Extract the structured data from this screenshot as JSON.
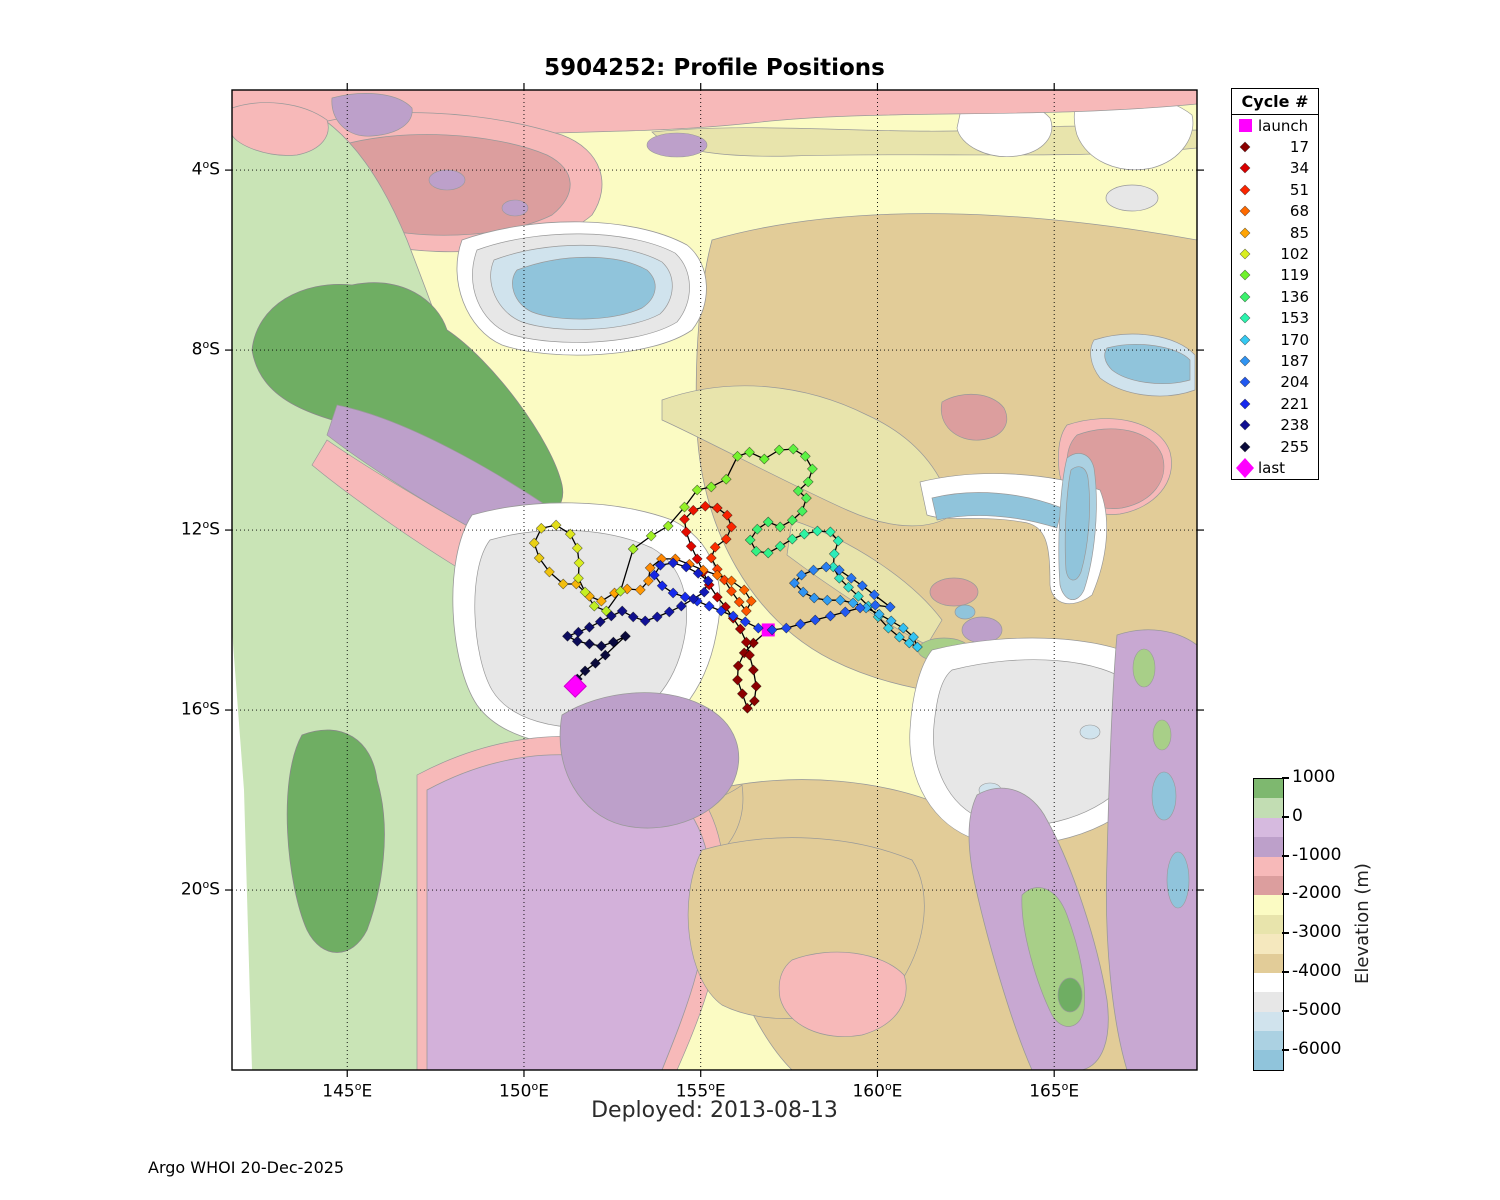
{
  "title": "5904252: Profile Positions",
  "deployed_label": "Deployed: 2013-08-13",
  "footer": "Argo WHOI 20-Dec-2025",
  "axes": {
    "lon_range": [
      141.74,
      169.04
    ],
    "lat_range": [
      -2.22,
      -24.0
    ],
    "lon_ticks": [
      145,
      150,
      155,
      160,
      165
    ],
    "lat_ticks": [
      4,
      8,
      12,
      16,
      20
    ],
    "lon_suffix": "E",
    "lat_suffix": "S"
  },
  "legend": {
    "title": "Cycle #",
    "items": [
      {
        "label": "launch",
        "type": "square",
        "color": "#ff00ff"
      },
      {
        "label": "17",
        "type": "diamond",
        "color": "#8b0000"
      },
      {
        "label": "34",
        "type": "diamond",
        "color": "#d90000"
      },
      {
        "label": "51",
        "type": "diamond",
        "color": "#fb2500"
      },
      {
        "label": "68",
        "type": "diamond",
        "color": "#ff6a00"
      },
      {
        "label": "85",
        "type": "diamond",
        "color": "#ffa405"
      },
      {
        "label": "102",
        "type": "diamond",
        "color": "#d9ee20"
      },
      {
        "label": "119",
        "type": "diamond",
        "color": "#70f22d"
      },
      {
        "label": "136",
        "type": "diamond",
        "color": "#3bf16c"
      },
      {
        "label": "153",
        "type": "diamond",
        "color": "#2bf3ad"
      },
      {
        "label": "170",
        "type": "diamond",
        "color": "#35c9f2"
      },
      {
        "label": "187",
        "type": "diamond",
        "color": "#3094f2"
      },
      {
        "label": "204",
        "type": "diamond",
        "color": "#2259f0"
      },
      {
        "label": "221",
        "type": "diamond",
        "color": "#1629ee"
      },
      {
        "label": "238",
        "type": "diamond",
        "color": "#111091"
      },
      {
        "label": "255",
        "type": "diamond",
        "color": "#0a0a3a"
      },
      {
        "label": "last",
        "type": "big-diamond",
        "color": "#ff00ff"
      }
    ]
  },
  "colorbar": {
    "label": "Elevation (m)",
    "tick_labels": [
      "1000",
      "0",
      "-1000",
      "-2000",
      "-3000",
      "-4000",
      "-5000",
      "-6000"
    ],
    "bands": [
      "#7eb86f",
      "#c2ddb3",
      "#d6badf",
      "#bda0ca",
      "#f7b9b9",
      "#dc9e9e",
      "#fbfbc3",
      "#e8e4ac",
      "#f5e8be",
      "#e2cc98",
      "#ffffff",
      "#e7e7e7",
      "#d0e3ed",
      "#abd1e2",
      "#90c4db"
    ]
  },
  "chart_data": {
    "type": "scatter",
    "title": "5904252: Profile Positions",
    "launch": [
      156.91,
      -14.22
    ],
    "last": [
      151.45,
      -15.47
    ],
    "points": [
      [
        156.49,
        -14.51,
        1
      ],
      [
        156.23,
        -14.73,
        3
      ],
      [
        156.06,
        -15.02,
        5
      ],
      [
        156.04,
        -15.33,
        7
      ],
      [
        156.18,
        -15.64,
        9
      ],
      [
        156.32,
        -15.96,
        11
      ],
      [
        156.52,
        -15.8,
        13
      ],
      [
        156.57,
        -15.47,
        15
      ],
      [
        156.49,
        -15.11,
        17
      ],
      [
        156.38,
        -14.78,
        19
      ],
      [
        156.29,
        -14.49,
        21
      ],
      [
        156.12,
        -14.2,
        23
      ],
      [
        155.92,
        -13.96,
        25
      ],
      [
        155.7,
        -13.71,
        27
      ],
      [
        155.47,
        -13.49,
        29
      ],
      [
        155.24,
        -13.22,
        31
      ],
      [
        155.07,
        -12.93,
        33
      ],
      [
        154.9,
        -12.64,
        35
      ],
      [
        154.73,
        -12.36,
        37
      ],
      [
        154.59,
        -12.04,
        39
      ],
      [
        154.54,
        -11.76,
        41
      ],
      [
        154.79,
        -11.56,
        43
      ],
      [
        155.13,
        -11.47,
        45
      ],
      [
        155.47,
        -11.51,
        47
      ],
      [
        155.75,
        -11.67,
        49
      ],
      [
        155.87,
        -11.93,
        51
      ],
      [
        155.72,
        -12.2,
        52
      ],
      [
        155.41,
        -12.38,
        53
      ],
      [
        155.3,
        -12.62,
        55
      ],
      [
        155.47,
        -12.87,
        57
      ],
      [
        155.67,
        -13.11,
        58
      ],
      [
        155.87,
        -13.36,
        60
      ],
      [
        156.09,
        -13.6,
        62
      ],
      [
        156.29,
        -13.8,
        63
      ],
      [
        156.43,
        -13.58,
        65
      ],
      [
        156.23,
        -13.33,
        66
      ],
      [
        155.87,
        -13.13,
        68
      ],
      [
        155.47,
        -13.0,
        70
      ],
      [
        155.07,
        -12.89,
        72
      ],
      [
        154.68,
        -12.76,
        73
      ],
      [
        154.28,
        -12.64,
        75
      ],
      [
        153.89,
        -12.64,
        77
      ],
      [
        153.57,
        -12.84,
        78
      ],
      [
        153.52,
        -13.13,
        80
      ],
      [
        153.29,
        -13.33,
        82
      ],
      [
        152.92,
        -13.31,
        83
      ],
      [
        152.56,
        -13.4,
        85
      ],
      [
        152.19,
        -13.58,
        87
      ],
      [
        151.85,
        -13.47,
        88
      ],
      [
        151.48,
        -13.2,
        89
      ],
      [
        151.11,
        -13.2,
        91
      ],
      [
        150.72,
        -12.93,
        92
      ],
      [
        150.43,
        -12.62,
        94
      ],
      [
        150.29,
        -12.29,
        95
      ],
      [
        150.49,
        -11.96,
        97
      ],
      [
        150.91,
        -11.89,
        98
      ],
      [
        151.31,
        -12.09,
        100
      ],
      [
        151.51,
        -12.4,
        101
      ],
      [
        151.56,
        -12.73,
        102
      ],
      [
        151.54,
        -13.07,
        103
      ],
      [
        151.73,
        -13.38,
        105
      ],
      [
        151.99,
        -13.69,
        106
      ],
      [
        152.33,
        -13.8,
        107
      ],
      [
        152.73,
        -13.36,
        108
      ],
      [
        153.09,
        -12.42,
        110
      ],
      [
        153.6,
        -12.13,
        111
      ],
      [
        154.08,
        -11.91,
        112
      ],
      [
        154.54,
        -11.49,
        113
      ],
      [
        154.9,
        -11.11,
        114
      ],
      [
        155.3,
        -11.04,
        116
      ],
      [
        155.72,
        -10.87,
        117
      ],
      [
        156.04,
        -10.36,
        118
      ],
      [
        156.38,
        -10.27,
        120
      ],
      [
        156.8,
        -10.42,
        121
      ],
      [
        157.22,
        -10.22,
        122
      ],
      [
        157.62,
        -10.2,
        124
      ],
      [
        157.96,
        -10.36,
        125
      ],
      [
        158.16,
        -10.64,
        126
      ],
      [
        158.04,
        -10.93,
        127
      ],
      [
        157.76,
        -11.13,
        129
      ],
      [
        157.99,
        -11.29,
        130
      ],
      [
        157.87,
        -11.58,
        132
      ],
      [
        157.59,
        -11.78,
        133
      ],
      [
        157.25,
        -11.93,
        134
      ],
      [
        156.91,
        -11.82,
        136
      ],
      [
        156.6,
        -11.98,
        138
      ],
      [
        156.4,
        -12.22,
        140
      ],
      [
        156.57,
        -12.47,
        142
      ],
      [
        156.91,
        -12.51,
        144
      ],
      [
        157.25,
        -12.36,
        146
      ],
      [
        157.59,
        -12.2,
        148
      ],
      [
        157.93,
        -12.09,
        150
      ],
      [
        158.3,
        -12.02,
        152
      ],
      [
        158.67,
        -12.04,
        153
      ],
      [
        158.89,
        -12.24,
        155
      ],
      [
        158.78,
        -12.53,
        156
      ],
      [
        158.75,
        -12.82,
        158
      ],
      [
        158.92,
        -13.07,
        159
      ],
      [
        159.18,
        -13.27,
        161
      ],
      [
        159.46,
        -13.47,
        162
      ],
      [
        159.74,
        -13.69,
        164
      ],
      [
        160.02,
        -13.93,
        165
      ],
      [
        160.31,
        -14.18,
        167
      ],
      [
        160.62,
        -14.38,
        168
      ],
      [
        160.9,
        -14.51,
        169
      ],
      [
        161.13,
        -14.6,
        170
      ],
      [
        161.02,
        -14.38,
        172
      ],
      [
        160.73,
        -14.18,
        173
      ],
      [
        160.39,
        -14.02,
        175
      ],
      [
        160.05,
        -13.87,
        177
      ],
      [
        159.68,
        -13.73,
        179
      ],
      [
        159.31,
        -13.62,
        181
      ],
      [
        158.95,
        -13.56,
        182
      ],
      [
        158.58,
        -13.56,
        184
      ],
      [
        158.21,
        -13.51,
        186
      ],
      [
        157.9,
        -13.38,
        187
      ],
      [
        157.65,
        -13.18,
        189
      ],
      [
        157.85,
        -13.0,
        190
      ],
      [
        158.19,
        -12.89,
        192
      ],
      [
        158.55,
        -12.82,
        193
      ],
      [
        158.92,
        -12.89,
        195
      ],
      [
        159.26,
        -13.07,
        196
      ],
      [
        159.57,
        -13.24,
        198
      ],
      [
        159.91,
        -13.44,
        199
      ],
      [
        160.36,
        -13.71,
        200
      ],
      [
        159.94,
        -13.67,
        201
      ],
      [
        159.51,
        -13.73,
        203
      ],
      [
        159.09,
        -13.82,
        204
      ],
      [
        158.67,
        -13.91,
        205
      ],
      [
        158.24,
        -14.0,
        207
      ],
      [
        157.82,
        -14.09,
        208
      ],
      [
        157.42,
        -14.18,
        210
      ],
      [
        157.02,
        -14.22,
        211
      ],
      [
        156.63,
        -14.18,
        212
      ],
      [
        156.26,
        -14.04,
        214
      ],
      [
        155.92,
        -13.91,
        215
      ],
      [
        155.58,
        -13.8,
        216
      ],
      [
        155.24,
        -13.69,
        218
      ],
      [
        154.9,
        -13.58,
        219
      ],
      [
        154.56,
        -13.49,
        220
      ],
      [
        154.22,
        -13.4,
        221
      ],
      [
        153.91,
        -13.24,
        222
      ],
      [
        153.69,
        -13.0,
        223
      ],
      [
        153.86,
        -12.78,
        225
      ],
      [
        154.22,
        -12.73,
        226
      ],
      [
        154.59,
        -12.82,
        227
      ],
      [
        154.93,
        -12.96,
        228
      ],
      [
        155.21,
        -13.13,
        230
      ],
      [
        155.1,
        -13.38,
        231
      ],
      [
        154.79,
        -13.53,
        232
      ],
      [
        154.45,
        -13.69,
        233
      ],
      [
        154.11,
        -13.82,
        234
      ],
      [
        153.77,
        -13.93,
        236
      ],
      [
        153.43,
        -14.02,
        237
      ],
      [
        153.09,
        -13.93,
        239
      ],
      [
        152.78,
        -13.8,
        240
      ],
      [
        152.47,
        -13.91,
        242
      ],
      [
        152.16,
        -14.04,
        243
      ],
      [
        151.85,
        -14.16,
        245
      ],
      [
        151.54,
        -14.27,
        246
      ],
      [
        151.23,
        -14.36,
        248
      ],
      [
        151.51,
        -14.47,
        249
      ],
      [
        151.85,
        -14.53,
        251
      ],
      [
        152.19,
        -14.58,
        252
      ],
      [
        152.53,
        -14.49,
        254
      ],
      [
        152.87,
        -14.36,
        255
      ],
      [
        152.3,
        -14.78,
        257
      ],
      [
        152.02,
        -14.96,
        258
      ],
      [
        151.73,
        -15.13,
        260
      ],
      [
        151.51,
        -15.31,
        261
      ]
    ],
    "cycle_color_anchors": {
      "1": "#8b0000",
      "17": "#8b0000",
      "34": "#d90000",
      "51": "#fb2500",
      "68": "#ff6a00",
      "85": "#ffa405",
      "102": "#d9ee20",
      "119": "#70f22d",
      "136": "#3bf16c",
      "153": "#2bf3ad",
      "170": "#35c9f2",
      "187": "#3094f2",
      "204": "#2259f0",
      "221": "#1629ee",
      "238": "#111091",
      "255": "#0a0a3a",
      "261": "#0a0a3a"
    },
    "marker_color_launch_last": "#ff00ff"
  }
}
